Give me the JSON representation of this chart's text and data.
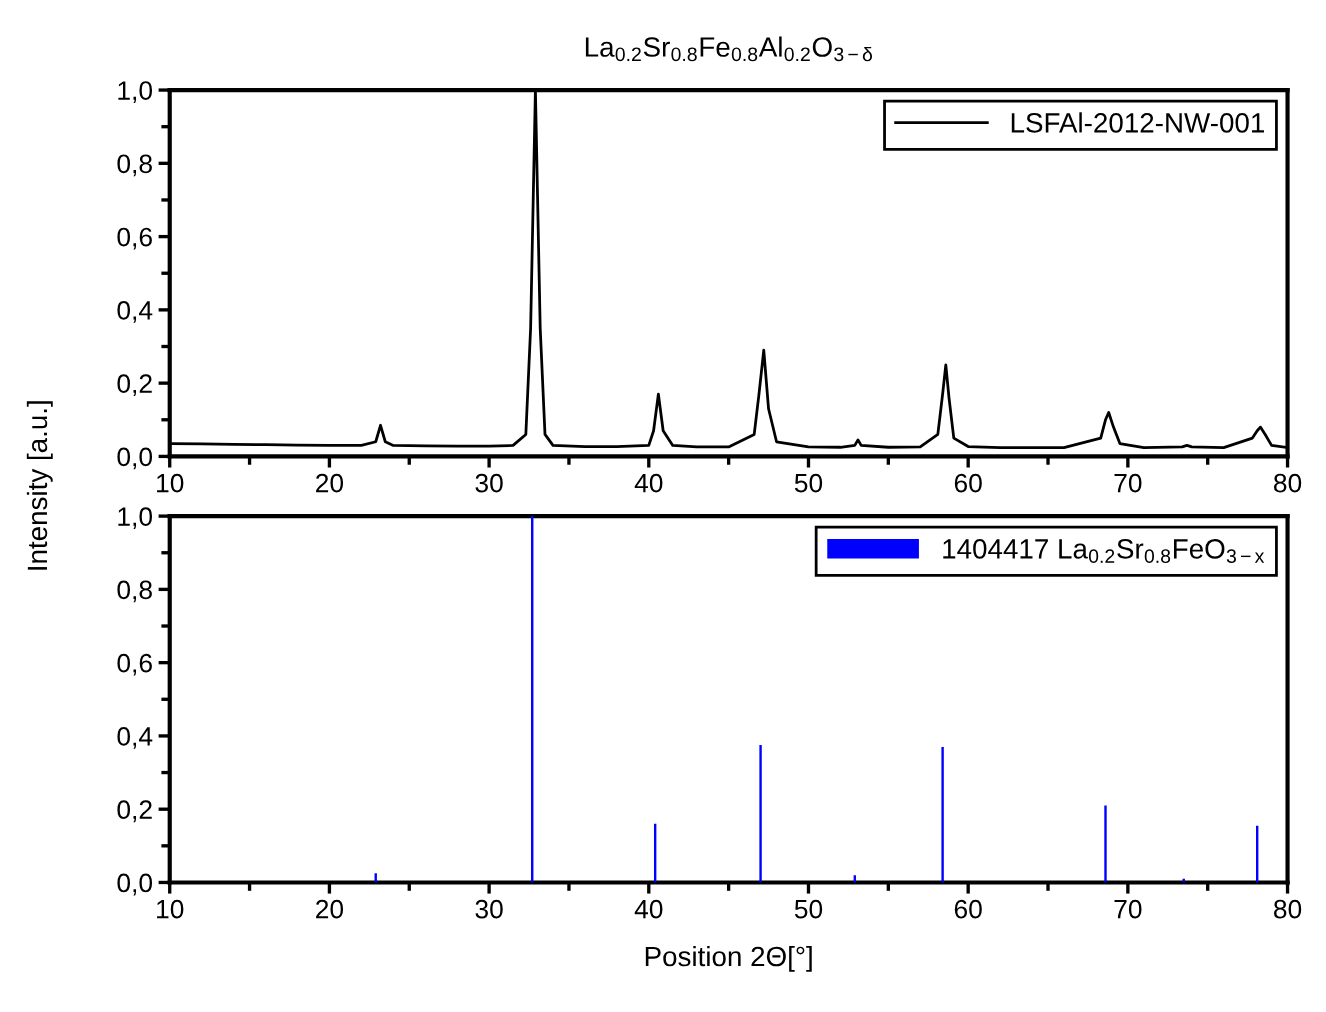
{
  "chart_data": [
    {
      "type": "line",
      "title": "La$_{0.2}$Sr$_{0.8}$Fe$_{0.8}$Al$_{0.2}$O$_{3−δ}$",
      "ylabel": "Intensity [a.u.]",
      "xlim": [
        10,
        80
      ],
      "ylim": [
        0,
        1
      ],
      "xticks": [
        10,
        {
          "value": 15,
          "label": null
        },
        20,
        {
          "value": 25,
          "label": null
        },
        30,
        {
          "value": 35,
          "label": null
        },
        40,
        {
          "value": 45,
          "label": null
        },
        50,
        {
          "value": 55,
          "label": null
        },
        60,
        {
          "value": 65,
          "label": null
        },
        70,
        {
          "value": 75,
          "label": null
        },
        80
      ],
      "yticks": [
        {
          "value": 0,
          "label": "0,0"
        },
        {
          "value": 0.1,
          "label": null
        },
        {
          "value": 0.2,
          "label": "0,2"
        },
        {
          "value": 0.3,
          "label": null
        },
        {
          "value": 0.4,
          "label": "0,4"
        },
        {
          "value": 0.5,
          "label": null
        },
        {
          "value": 0.6,
          "label": "0,6"
        },
        {
          "value": 0.7,
          "label": null
        },
        {
          "value": 0.8,
          "label": "0,8"
        },
        {
          "value": 0.9,
          "label": null
        },
        {
          "value": 1.0,
          "label": "1,0"
        }
      ],
      "legend": "top right",
      "grid": false,
      "series": [
        {
          "name": "LSFAl-2012-NW-001",
          "color": "#000000",
          "x": [
            10,
            12,
            14,
            16,
            18,
            20,
            22,
            22.9,
            23.2,
            23.5,
            24,
            26,
            28,
            30,
            31.5,
            32.3,
            32.6,
            32.9,
            33.2,
            33.5,
            34,
            36,
            38,
            40,
            40.3,
            40.6,
            40.9,
            41.5,
            43,
            45,
            46.6,
            46.9,
            47.2,
            47.5,
            48,
            50,
            52,
            52.9,
            53.1,
            53.3,
            55,
            57,
            58.1,
            58.4,
            58.6,
            58.8,
            59.1,
            60,
            62,
            64,
            66,
            68.3,
            68.6,
            68.8,
            69.1,
            69.5,
            71,
            73.4,
            73.7,
            74,
            76,
            77.8,
            78.1,
            78.3,
            78.6,
            79,
            80
          ],
          "values": [
            0.035,
            0.034,
            0.033,
            0.032,
            0.031,
            0.03,
            0.03,
            0.04,
            0.085,
            0.04,
            0.03,
            0.029,
            0.028,
            0.028,
            0.03,
            0.06,
            0.35,
            1.0,
            0.35,
            0.06,
            0.03,
            0.027,
            0.027,
            0.03,
            0.07,
            0.17,
            0.07,
            0.03,
            0.026,
            0.026,
            0.06,
            0.17,
            0.29,
            0.13,
            0.04,
            0.026,
            0.025,
            0.03,
            0.045,
            0.03,
            0.025,
            0.026,
            0.06,
            0.17,
            0.25,
            0.16,
            0.05,
            0.027,
            0.024,
            0.024,
            0.024,
            0.05,
            0.1,
            0.12,
            0.08,
            0.035,
            0.024,
            0.026,
            0.03,
            0.026,
            0.024,
            0.05,
            0.07,
            0.08,
            0.06,
            0.03,
            0.024
          ]
        }
      ]
    },
    {
      "type": "bar",
      "xlabel": "Position 2Θ[°]",
      "xlim": [
        10,
        80
      ],
      "ylim": [
        0,
        1
      ],
      "xticks": [
        10,
        {
          "value": 15,
          "label": null
        },
        20,
        {
          "value": 25,
          "label": null
        },
        30,
        {
          "value": 35,
          "label": null
        },
        40,
        {
          "value": 45,
          "label": null
        },
        50,
        {
          "value": 55,
          "label": null
        },
        60,
        {
          "value": 65,
          "label": null
        },
        70,
        {
          "value": 75,
          "label": null
        },
        80
      ],
      "yticks": [
        {
          "value": 0,
          "label": "0,0"
        },
        {
          "value": 0.1,
          "label": null
        },
        {
          "value": 0.2,
          "label": "0,2"
        },
        {
          "value": 0.3,
          "label": null
        },
        {
          "value": 0.4,
          "label": "0,4"
        },
        {
          "value": 0.5,
          "label": null
        },
        {
          "value": 0.6,
          "label": "0,6"
        },
        {
          "value": 0.7,
          "label": null
        },
        {
          "value": 0.8,
          "label": "0,8"
        },
        {
          "value": 0.9,
          "label": null
        },
        {
          "value": 1.0,
          "label": "1,0"
        }
      ],
      "legend": "top right",
      "grid": false,
      "series": [
        {
          "name": "1404417 La$_{0.2}$Sr$_{0.8}$FeO$_{3−x}$",
          "color": "#0000ff",
          "x": [
            22.9,
            32.7,
            40.4,
            47.0,
            52.9,
            58.4,
            68.6,
            73.5,
            78.1
          ],
          "values": [
            0.025,
            1.0,
            0.16,
            0.375,
            0.02,
            0.37,
            0.21,
            0.01,
            0.155
          ]
        }
      ]
    }
  ]
}
